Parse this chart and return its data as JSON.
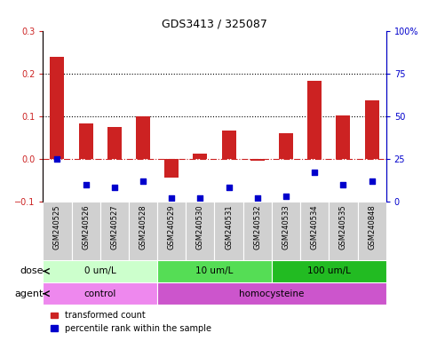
{
  "title": "GDS3413 / 325087",
  "samples": [
    "GSM240525",
    "GSM240526",
    "GSM240527",
    "GSM240528",
    "GSM240529",
    "GSM240530",
    "GSM240531",
    "GSM240532",
    "GSM240533",
    "GSM240534",
    "GSM240535",
    "GSM240848"
  ],
  "red_values": [
    0.238,
    0.083,
    0.075,
    0.099,
    -0.045,
    0.012,
    0.067,
    -0.005,
    0.06,
    0.182,
    0.102,
    0.137
  ],
  "blue_marker_y_actual": [
    25,
    10,
    8,
    12,
    2,
    2,
    8,
    2,
    3,
    17,
    10,
    12
  ],
  "left_ylim": [
    -0.1,
    0.3
  ],
  "right_ylim": [
    0,
    100
  ],
  "left_yticks": [
    -0.1,
    0.0,
    0.1,
    0.2,
    0.3
  ],
  "right_yticks": [
    0,
    25,
    50,
    75,
    100
  ],
  "right_yticklabels": [
    "0",
    "25",
    "50",
    "75",
    "100%"
  ],
  "hline_dotted": [
    0.1,
    0.2
  ],
  "bar_color": "#cc2222",
  "blue_color": "#0000cc",
  "dose_groups": [
    {
      "label": "0 um/L",
      "start": 0,
      "end": 4,
      "color": "#ccffcc"
    },
    {
      "label": "10 um/L",
      "start": 4,
      "end": 8,
      "color": "#55dd55"
    },
    {
      "label": "100 um/L",
      "start": 8,
      "end": 12,
      "color": "#22bb22"
    }
  ],
  "agent_groups": [
    {
      "label": "control",
      "start": 0,
      "end": 4,
      "color": "#ee88ee"
    },
    {
      "label": "homocysteine",
      "start": 4,
      "end": 12,
      "color": "#cc55cc"
    }
  ],
  "legend_red_label": "transformed count",
  "legend_blue_label": "percentile rank within the sample",
  "dose_label": "dose",
  "agent_label": "agent",
  "bg_color": "#ffffff",
  "xticklabel_bg": "#d0d0d0"
}
